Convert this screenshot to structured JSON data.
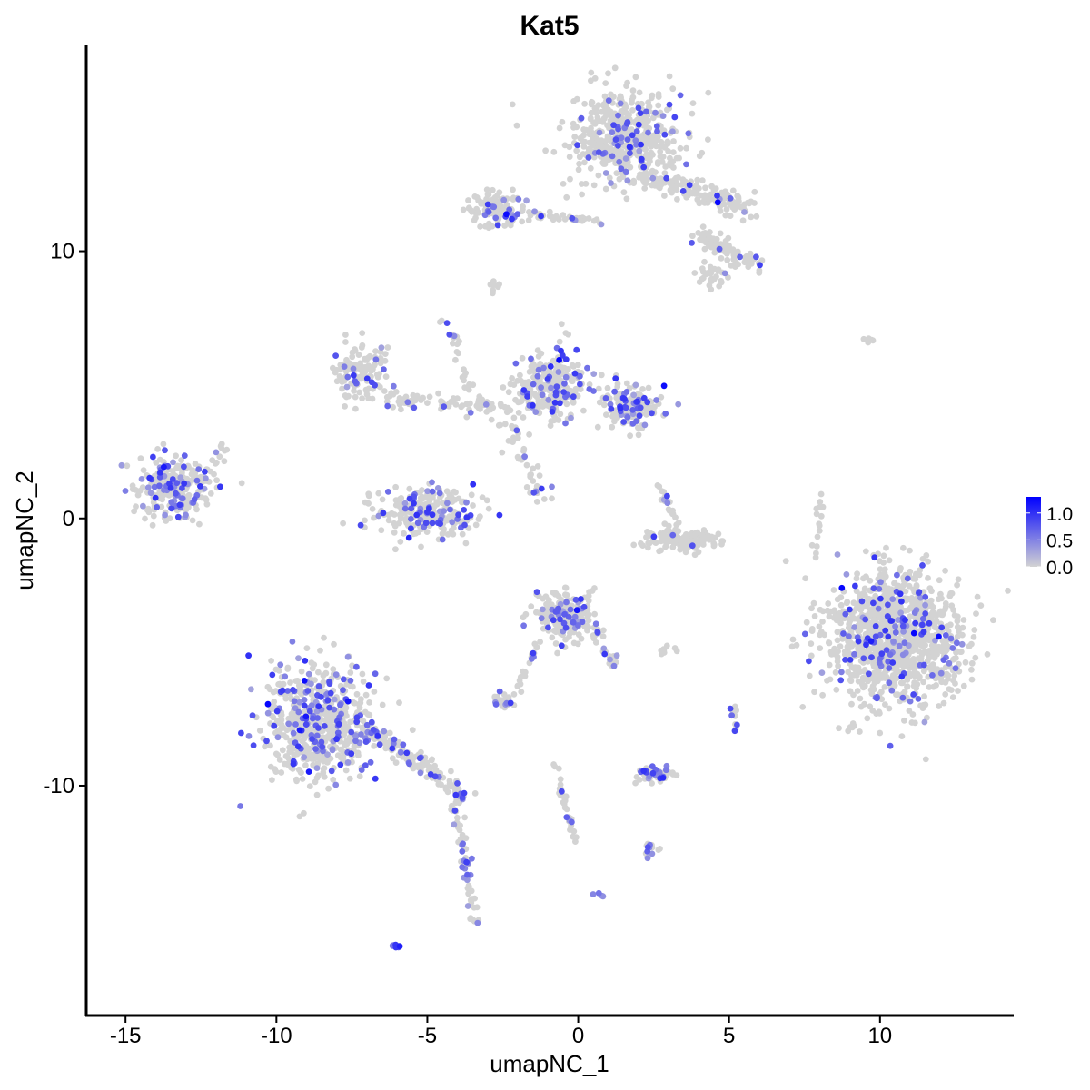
{
  "chart_data": {
    "type": "scatter",
    "title": "Kat5",
    "xlabel": "umapNC_1",
    "ylabel": "umapNC_2",
    "xlim": [
      -16.3,
      14.4
    ],
    "ylim": [
      -18.6,
      17.7
    ],
    "x_ticks": [
      -15,
      -10,
      -5,
      0,
      5,
      10
    ],
    "y_ticks": [
      -10,
      0,
      10
    ],
    "x_tick_labels": [
      "-15",
      "-10",
      "-5",
      "0",
      "5",
      "10"
    ],
    "y_tick_labels": [
      "-10",
      "0",
      "10"
    ],
    "grid": false,
    "legend": {
      "placement": "right",
      "type": "colorbar",
      "range": [
        0,
        1.3
      ],
      "ticks": [
        0,
        0.5,
        1.0
      ],
      "tick_labels": [
        "0.0",
        "0.5",
        "1.0"
      ]
    },
    "colors": {
      "low": "#D3D3D3",
      "high": "#0000FF"
    },
    "point_groups": [
      {
        "center": [
          1.6,
          14.3
        ],
        "sd": [
          0.9,
          0.85
        ],
        "n": 520,
        "expr_frac": 0.12
      },
      {
        "from": [
          2.2,
          12.8
        ],
        "to": [
          5.8,
          11.6
        ],
        "width": 0.45,
        "n": 160,
        "expr_frac": 0.1
      },
      {
        "from": [
          4.0,
          10.6
        ],
        "to": [
          6.0,
          9.4
        ],
        "width": 0.35,
        "n": 90,
        "expr_frac": 0.05
      },
      {
        "center": [
          4.4,
          9.2
        ],
        "sd": [
          0.3,
          0.3
        ],
        "n": 30,
        "expr_frac": 0.1
      },
      {
        "center": [
          -2.6,
          11.6
        ],
        "sd": [
          0.45,
          0.35
        ],
        "n": 120,
        "expr_frac": 0.12
      },
      {
        "from": [
          -1.6,
          11.4
        ],
        "to": [
          0.9,
          11.1
        ],
        "width": 0.15,
        "n": 40,
        "expr_frac": 0.15
      },
      {
        "center": [
          -2.8,
          8.6
        ],
        "sd": [
          0.15,
          0.15
        ],
        "n": 10,
        "expr_frac": 0
      },
      {
        "from": [
          -4.4,
          7.5
        ],
        "to": [
          -3.6,
          4.5
        ],
        "width": 0.2,
        "n": 25,
        "expr_frac": 0.1
      },
      {
        "center": [
          -13.4,
          1.2
        ],
        "sd": [
          0.6,
          0.55
        ],
        "n": 260,
        "expr_frac": 0.25
      },
      {
        "from": [
          -12.6,
          0.4
        ],
        "to": [
          -11.7,
          2.8
        ],
        "width": 0.3,
        "n": 18,
        "expr_frac": 0.05
      },
      {
        "center": [
          -7.2,
          5.5
        ],
        "sd": [
          0.45,
          0.5
        ],
        "n": 130,
        "expr_frac": 0.12
      },
      {
        "from": [
          -6.5,
          4.4
        ],
        "to": [
          -2.0,
          4.2
        ],
        "width": 0.3,
        "n": 90,
        "expr_frac": 0.12
      },
      {
        "center": [
          -0.9,
          5.0
        ],
        "sd": [
          0.6,
          0.7
        ],
        "n": 270,
        "expr_frac": 0.2
      },
      {
        "center": [
          1.8,
          4.2
        ],
        "sd": [
          0.5,
          0.4
        ],
        "n": 160,
        "expr_frac": 0.22
      },
      {
        "from": [
          -2.2,
          3.6
        ],
        "to": [
          -1.2,
          0.7
        ],
        "width": 0.5,
        "n": 45,
        "expr_frac": 0.08
      },
      {
        "center": [
          -5.0,
          0.2
        ],
        "sd": [
          0.9,
          0.45
        ],
        "n": 260,
        "expr_frac": 0.2
      },
      {
        "center": [
          3.4,
          -0.8
        ],
        "sd": [
          0.6,
          0.2
        ],
        "n": 150,
        "expr_frac": 0.03
      },
      {
        "from": [
          2.5,
          1.5
        ],
        "to": [
          3.3,
          -0.2
        ],
        "width": 0.15,
        "n": 20,
        "expr_frac": 0.1
      },
      {
        "from": [
          8.1,
          0.9
        ],
        "to": [
          7.8,
          -1.7
        ],
        "width": 0.1,
        "n": 15,
        "expr_frac": 0
      },
      {
        "center": [
          9.6,
          6.7
        ],
        "sd": [
          0.1,
          0.05
        ],
        "n": 5,
        "expr_frac": 0
      },
      {
        "center": [
          10.5,
          -4.5
        ],
        "sd": [
          1.1,
          1.25
        ],
        "n": 1150,
        "expr_frac": 0.12
      },
      {
        "center": [
          -0.4,
          -3.6
        ],
        "sd": [
          0.5,
          0.45
        ],
        "n": 200,
        "expr_frac": 0.2
      },
      {
        "from": [
          0.6,
          -4.2
        ],
        "to": [
          1.2,
          -5.5
        ],
        "width": 0.2,
        "n": 25,
        "expr_frac": 0.2
      },
      {
        "from": [
          -1.2,
          -4.5
        ],
        "to": [
          -2.0,
          -6.4
        ],
        "width": 0.15,
        "n": 20,
        "expr_frac": 0.1
      },
      {
        "center": [
          2.9,
          -4.9
        ],
        "sd": [
          0.2,
          0.05
        ],
        "n": 8,
        "expr_frac": 0
      },
      {
        "center": [
          -8.6,
          -7.7
        ],
        "sd": [
          0.9,
          1.1
        ],
        "n": 620,
        "expr_frac": 0.22
      },
      {
        "from": [
          -7.0,
          -7.8
        ],
        "to": [
          -3.8,
          -10.4
        ],
        "width": 0.35,
        "n": 160,
        "expr_frac": 0.2
      },
      {
        "from": [
          -4.1,
          -10.6
        ],
        "to": [
          -3.4,
          -15.1
        ],
        "width": 0.15,
        "n": 60,
        "expr_frac": 0.3
      },
      {
        "center": [
          -6.0,
          -16.0
        ],
        "sd": [
          0.06,
          0.04
        ],
        "n": 8,
        "expr_frac": 1
      },
      {
        "center": [
          -2.4,
          -6.8
        ],
        "sd": [
          0.25,
          0.12
        ],
        "n": 30,
        "expr_frac": 0.2
      },
      {
        "center": [
          2.5,
          -9.6
        ],
        "sd": [
          0.35,
          0.12
        ],
        "n": 55,
        "expr_frac": 0.3
      },
      {
        "from": [
          -0.8,
          -9.2
        ],
        "to": [
          -0.1,
          -12.0
        ],
        "width": 0.1,
        "n": 40,
        "expr_frac": 0.1
      },
      {
        "center": [
          2.35,
          -12.4
        ],
        "sd": [
          0.15,
          0.15
        ],
        "n": 15,
        "expr_frac": 0.4
      },
      {
        "center": [
          5.1,
          -7.4
        ],
        "sd": [
          0.1,
          0.25
        ],
        "n": 10,
        "expr_frac": 0.5
      },
      {
        "center": [
          0.6,
          -14.1
        ],
        "sd": [
          0.08,
          0.05
        ],
        "n": 4,
        "expr_frac": 0.5
      }
    ]
  }
}
